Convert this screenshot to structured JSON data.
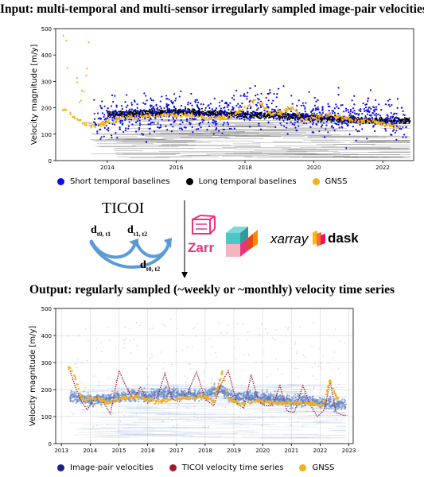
{
  "titles": {
    "input": "Input: multi-temporal and multi-sensor irregularly sampled image-pair velocities",
    "output": "Output: regularly sampled (~weekly or ~monthly) velocity time series"
  },
  "middle": {
    "method": "TICOI",
    "labels": {
      "a": "d",
      "a_sub": "t0, t1",
      "b": "d",
      "b_sub": "t1, t2",
      "c": "d",
      "c_sub": "t0, t2"
    },
    "logos": [
      "Zarr",
      "xarray",
      "dask"
    ],
    "colors": {
      "zarr": "#e8337d",
      "xarray_cube": "#4dc7c5",
      "xarray_red": "#e64a19",
      "dask_orange": "#fc6e31",
      "dask_yellow": "#fdb514"
    }
  },
  "legend_top": [
    {
      "label": "Short temporal baselines",
      "color": "#0b0bf5"
    },
    {
      "label": "Long temporal baselines",
      "color": "#000000"
    },
    {
      "label": "GNSS",
      "color": "#f2b11a"
    }
  ],
  "legend_bottom": [
    {
      "label": "Image-pair velocities",
      "color": "#1f1f8c"
    },
    {
      "label": "TICOI velocity time series",
      "color": "#a01c2d"
    },
    {
      "label": "GNSS",
      "color": "#f2b11a"
    }
  ],
  "chart_data": [
    {
      "type": "scatter",
      "title": "",
      "xlabel": "",
      "ylabel": "Velocity magnitude [m/y]",
      "ylim": [
        0,
        500
      ],
      "yticks": [
        0,
        100,
        200,
        300,
        400,
        500
      ],
      "xticks": [
        "2014",
        "2016",
        "2018",
        "2020",
        "2022"
      ],
      "grid": false,
      "series": [
        {
          "name": "Short temporal baselines",
          "color": "#0b0bf5",
          "x": [
            2013.8,
            2014.4,
            2015.0,
            2015.6,
            2016.2,
            2016.8,
            2017.4,
            2018.0,
            2018.6,
            2019.2,
            2019.8,
            2020.4,
            2021.0,
            2021.6,
            2022.2,
            2022.6
          ],
          "y": [
            160,
            170,
            175,
            185,
            180,
            175,
            170,
            200,
            185,
            175,
            165,
            170,
            160,
            175,
            165,
            150
          ]
        },
        {
          "name": "Long temporal baselines",
          "color": "#000000",
          "x": [
            2014.0,
            2015.0,
            2016.0,
            2017.0,
            2018.0,
            2019.0,
            2020.0,
            2021.0,
            2022.0,
            2022.6
          ],
          "y": [
            175,
            180,
            185,
            180,
            175,
            170,
            165,
            155,
            150,
            150
          ]
        },
        {
          "name": "GNSS",
          "color": "#f2b11a",
          "x": [
            2012.8,
            2013.0,
            2013.3,
            2013.6,
            2014.0,
            2014.6,
            2015.4,
            2016.2,
            2017.0,
            2017.6,
            2018.3,
            2018.8,
            2019.4,
            2019.7,
            2020.3,
            2021.3,
            2021.7,
            2022.3
          ],
          "y": [
            190,
            165,
            145,
            130,
            145,
            165,
            170,
            175,
            160,
            165,
            230,
            175,
            200,
            150,
            175,
            150,
            150,
            130
          ]
        }
      ]
    },
    {
      "type": "line",
      "title": "",
      "xlabel": "",
      "ylabel": "Velocity magnitude [m/y]",
      "ylim": [
        0,
        500
      ],
      "yticks": [
        0,
        100,
        200,
        300,
        400,
        500
      ],
      "xticks": [
        "2013",
        "2014",
        "2015",
        "2016",
        "2017",
        "2018",
        "2019",
        "2020",
        "2021",
        "2022",
        "2023"
      ],
      "grid": true,
      "series": [
        {
          "name": "TICOI velocity time series",
          "color": "#a01c2d",
          "x": [
            2013.3,
            2013.5,
            2013.7,
            2013.9,
            2014.2,
            2014.45,
            2014.7,
            2015.0,
            2015.3,
            2015.5,
            2015.75,
            2016.0,
            2016.35,
            2016.6,
            2016.85,
            2017.1,
            2017.4,
            2017.7,
            2018.0,
            2018.3,
            2018.55,
            2018.8,
            2019.1,
            2019.35,
            2019.6,
            2019.85,
            2020.1,
            2020.35,
            2020.6,
            2020.85,
            2021.1,
            2021.4,
            2021.65,
            2021.9,
            2022.15,
            2022.35,
            2022.55,
            2022.8,
            2022.95
          ],
          "y": [
            270,
            205,
            155,
            125,
            175,
            155,
            110,
            270,
            200,
            165,
            210,
            150,
            175,
            260,
            165,
            155,
            190,
            265,
            165,
            140,
            220,
            270,
            150,
            130,
            255,
            155,
            140,
            140,
            215,
            120,
            115,
            215,
            145,
            100,
            125,
            230,
            115,
            105,
            105
          ]
        },
        {
          "name": "GNSS",
          "color": "#f2b11a",
          "x": [
            2013.3,
            2013.45,
            2013.7,
            2014.3,
            2014.6,
            2015.0,
            2015.3,
            2015.6,
            2016.3,
            2017.0,
            2017.7,
            2018.0,
            2018.3,
            2018.6,
            2018.8,
            2019.3,
            2019.8,
            2020.3,
            2021.7,
            2022.1,
            2022.35,
            2022.6
          ],
          "y": [
            280,
            255,
            165,
            165,
            150,
            165,
            170,
            175,
            155,
            165,
            170,
            175,
            155,
            265,
            165,
            145,
            160,
            150,
            150,
            140,
            235,
            165
          ]
        },
        {
          "name": "Image-pair velocities",
          "color": "#1f1f8c",
          "x": [
            2013.5,
            2014.0,
            2014.5,
            2015.0,
            2015.5,
            2016.0,
            2016.5,
            2017.0,
            2017.5,
            2018.0,
            2018.5,
            2019.0,
            2019.5,
            2020.0,
            2020.5,
            2021.0,
            2021.5,
            2022.0,
            2022.5
          ],
          "y": [
            175,
            160,
            165,
            170,
            180,
            175,
            185,
            185,
            180,
            180,
            200,
            170,
            175,
            170,
            165,
            155,
            160,
            150,
            145
          ]
        }
      ]
    }
  ]
}
